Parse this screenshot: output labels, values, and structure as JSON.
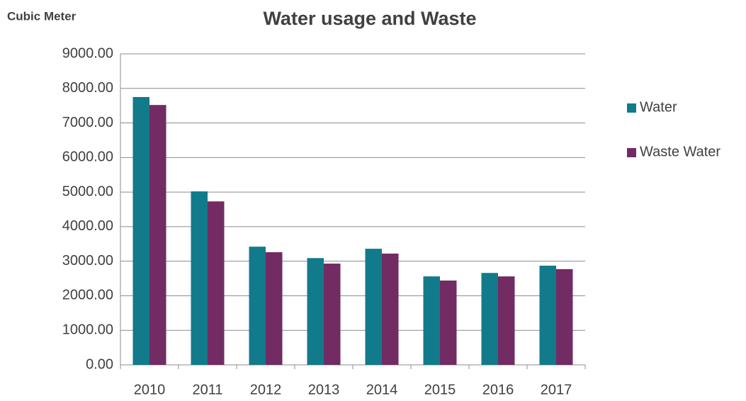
{
  "chart_data": {
    "type": "bar",
    "title": "Water usage and Waste",
    "y_label": "Cubic Meter",
    "categories": [
      "2010",
      "2011",
      "2012",
      "2013",
      "2014",
      "2015",
      "2016",
      "2017"
    ],
    "series": [
      {
        "name": "Water",
        "color": "#117a8b",
        "values": [
          7750,
          5020,
          3420,
          3090,
          3360,
          2560,
          2660,
          2870
        ]
      },
      {
        "name": "Waste Water",
        "color": "#722b63",
        "values": [
          7520,
          4730,
          3260,
          2930,
          3220,
          2440,
          2560,
          2770
        ]
      }
    ],
    "ylim": [
      0,
      9000
    ],
    "yticks": [
      {
        "value": 0,
        "label": "0.00"
      },
      {
        "value": 1000,
        "label": "1000.00"
      },
      {
        "value": 2000,
        "label": "2000.00"
      },
      {
        "value": 3000,
        "label": "3000.00"
      },
      {
        "value": 4000,
        "label": "4000.00"
      },
      {
        "value": 5000,
        "label": "5000.00"
      },
      {
        "value": 6000,
        "label": "6000.00"
      },
      {
        "value": 7000,
        "label": "7000.00"
      },
      {
        "value": 8000,
        "label": "8000.00"
      },
      {
        "value": 9000,
        "label": "9000.00"
      }
    ],
    "grid": true,
    "legend": "right"
  }
}
